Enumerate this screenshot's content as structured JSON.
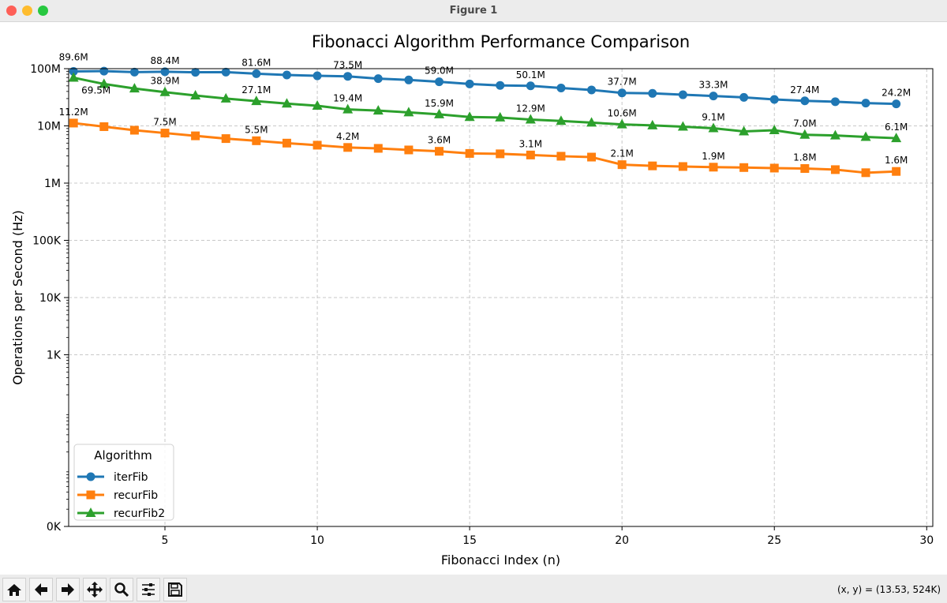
{
  "window": {
    "title": "Figure 1"
  },
  "toolbar": {
    "buttons": [
      {
        "name": "home",
        "icon": "home-icon"
      },
      {
        "name": "back",
        "icon": "arrow-left-icon"
      },
      {
        "name": "forward",
        "icon": "arrow-right-icon"
      },
      {
        "name": "pan",
        "icon": "move-icon"
      },
      {
        "name": "zoom",
        "icon": "magnifier-icon"
      },
      {
        "name": "configure-subplots",
        "icon": "sliders-icon"
      },
      {
        "name": "save",
        "icon": "floppy-disk-icon"
      }
    ],
    "coords": "(x, y) = (13.53, 524K)"
  },
  "chart_data": {
    "type": "line",
    "title": "Fibonacci Algorithm Performance Comparison",
    "xlabel": "Fibonacci Index (n)",
    "ylabel": "Operations per Second (Hz)",
    "yscale": "log",
    "xlim": [
      1.84,
      30.2
    ],
    "ylim": [
      1,
      100000000
    ],
    "xticks": [
      5,
      10,
      15,
      20,
      25,
      30
    ],
    "xtick_labels": [
      "5",
      "10",
      "15",
      "20",
      "25",
      "30"
    ],
    "yticks": [
      1,
      1000,
      10000,
      100000,
      1000000,
      10000000,
      100000000
    ],
    "ytick_labels": [
      "0K",
      "1K",
      "10K",
      "100K",
      "1M",
      "10M",
      "100M"
    ],
    "grid": true,
    "legend": {
      "title": "Algorithm",
      "placement": "lower-left"
    },
    "x": [
      2,
      3,
      4,
      5,
      6,
      7,
      8,
      9,
      10,
      11,
      12,
      13,
      14,
      15,
      16,
      17,
      18,
      19,
      20,
      21,
      22,
      23,
      24,
      25,
      26,
      27,
      28,
      29
    ],
    "series": [
      {
        "name": "iterFib",
        "color": "#1f77b4",
        "marker": "circle",
        "values_millions": [
          89.6,
          90.5,
          87,
          88.4,
          86.5,
          87,
          81.6,
          77.5,
          75,
          73.5,
          67,
          63.5,
          59.0,
          54,
          51,
          50.1,
          46,
          42.5,
          37.7,
          37,
          35,
          33.3,
          31.5,
          29,
          27.4,
          26.5,
          25,
          24.2
        ],
        "annotations": [
          {
            "x": 2,
            "label": "89.6M"
          },
          {
            "x": 5,
            "label": "88.4M"
          },
          {
            "x": 8,
            "label": "81.6M"
          },
          {
            "x": 11,
            "label": "73.5M"
          },
          {
            "x": 14,
            "label": "59.0M"
          },
          {
            "x": 17,
            "label": "50.1M"
          },
          {
            "x": 20,
            "label": "37.7M"
          },
          {
            "x": 23,
            "label": "33.3M"
          },
          {
            "x": 26,
            "label": "27.4M"
          },
          {
            "x": 29,
            "label": "24.2M"
          }
        ]
      },
      {
        "name": "recurFib",
        "color": "#ff7f0e",
        "marker": "square",
        "values_millions": [
          11.2,
          9.7,
          8.4,
          7.5,
          6.7,
          6.0,
          5.5,
          5.0,
          4.6,
          4.2,
          4.05,
          3.8,
          3.6,
          3.3,
          3.25,
          3.1,
          2.95,
          2.85,
          2.1,
          2.0,
          1.95,
          1.9,
          1.87,
          1.83,
          1.8,
          1.72,
          1.52,
          1.6
        ],
        "annotations": [
          {
            "x": 2,
            "label": "11.2M"
          },
          {
            "x": 5,
            "label": "7.5M"
          },
          {
            "x": 8,
            "label": "5.5M"
          },
          {
            "x": 11,
            "label": "4.2M"
          },
          {
            "x": 14,
            "label": "3.6M"
          },
          {
            "x": 17,
            "label": "3.1M"
          },
          {
            "x": 20,
            "label": "2.1M"
          },
          {
            "x": 23,
            "label": "1.9M"
          },
          {
            "x": 26,
            "label": "1.8M"
          },
          {
            "x": 29,
            "label": "1.6M"
          }
        ]
      },
      {
        "name": "recurFib2",
        "color": "#2ca02c",
        "marker": "triangle",
        "values_millions": [
          69.5,
          54,
          45,
          38.9,
          34,
          30,
          27.1,
          24.5,
          22.5,
          19.4,
          18.5,
          17.2,
          15.9,
          14.3,
          14,
          12.9,
          12.2,
          11.4,
          10.6,
          10.2,
          9.7,
          9.1,
          8.0,
          8.4,
          7.0,
          6.8,
          6.4,
          6.1
        ],
        "annotations": [
          {
            "x": 2,
            "label": "69.5M"
          },
          {
            "x": 5,
            "label": "38.9M"
          },
          {
            "x": 8,
            "label": "27.1M"
          },
          {
            "x": 11,
            "label": "19.4M"
          },
          {
            "x": 14,
            "label": "15.9M"
          },
          {
            "x": 17,
            "label": "12.9M"
          },
          {
            "x": 20,
            "label": "10.6M"
          },
          {
            "x": 23,
            "label": "9.1M"
          },
          {
            "x": 26,
            "label": "7.0M"
          },
          {
            "x": 29,
            "label": "6.1M"
          }
        ]
      }
    ]
  }
}
